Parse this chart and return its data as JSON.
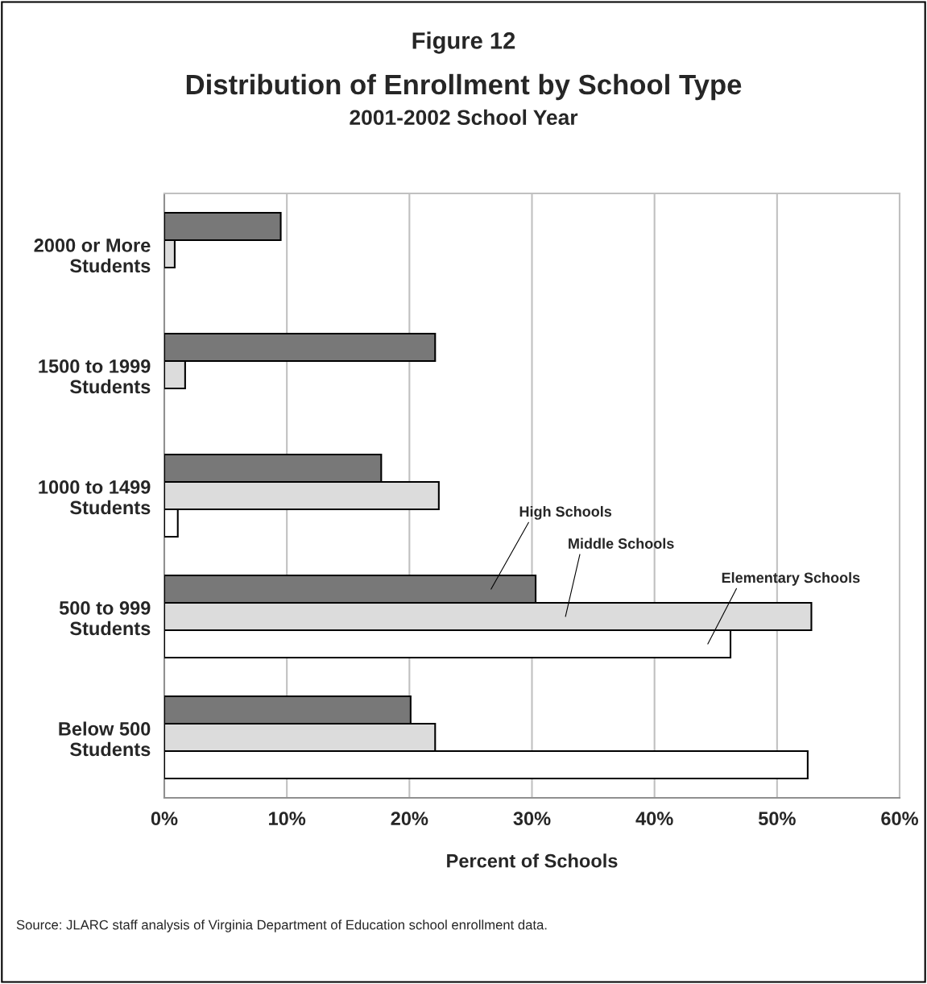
{
  "chart_data": {
    "type": "bar",
    "orientation": "horizontal",
    "title": "Distribution of Enrollment by School Type",
    "subtitle": "2001-2002 School Year",
    "xlabel": "Percent of Schools",
    "annotations": [
      "Figure 12",
      "Source: JLARC staff analysis of Virginia Department of Education school enrollment data."
    ],
    "categories": [
      "2000 or More\nStudents",
      "1500 to 1999\nStudents",
      "1000 to 1499\nStudents",
      "500 to 999\nStudents",
      "Below 500\nStudents"
    ],
    "series": [
      {
        "name": "High Schools",
        "color": "#787878",
        "values": [
          9.5,
          22.1,
          17.7,
          30.3,
          20.1
        ]
      },
      {
        "name": "Middle Schools",
        "color": "#dcdcdc",
        "values": [
          0.85,
          1.7,
          22.4,
          52.8,
          22.1
        ]
      },
      {
        "name": "Elementary Schools",
        "color": "#ffffff",
        "values": [
          null,
          null,
          1.1,
          46.2,
          52.5
        ]
      }
    ],
    "xlim": [
      0,
      60
    ],
    "xticks": [
      {
        "value": 0,
        "label": "0%"
      },
      {
        "value": 10,
        "label": "10%"
      },
      {
        "value": 20,
        "label": "20%"
      },
      {
        "value": 30,
        "label": "30%"
      },
      {
        "value": 40,
        "label": "40%"
      },
      {
        "value": 50,
        "label": "50%"
      },
      {
        "value": 60,
        "label": "60%"
      }
    ],
    "grid": "x",
    "legend": false
  }
}
